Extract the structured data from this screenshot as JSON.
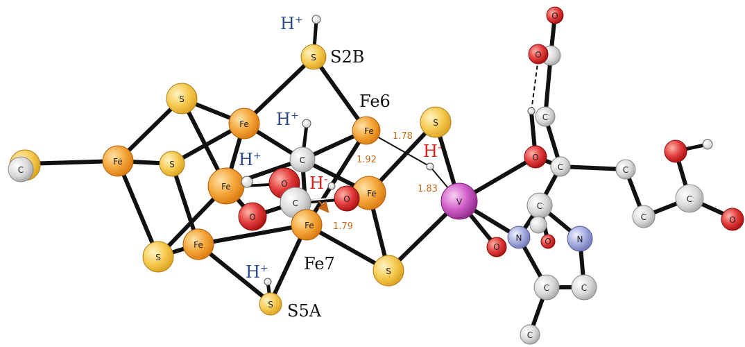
{
  "atom_symbols": {
    "fe": "Fe",
    "s": "S",
    "c": "C",
    "o": "O",
    "n": "N",
    "v": "V"
  },
  "labels": {
    "s2b": "S2B",
    "s5a": "S5A",
    "fe6": "Fe6",
    "fe7": "Fe7",
    "h_plus_s2b": "H",
    "h_plus_c": "H",
    "h_plus_fe": "H",
    "h_plus_s5a": "H",
    "h_minus_v": "H",
    "h_minus_center": "H",
    "plus_sign": "+",
    "minus_sign": "-"
  },
  "bond_lengths": {
    "fe6_h": "1.78",
    "c_h": "1.92",
    "v_h": "1.83",
    "fe7_h": "1.79"
  },
  "colors": {
    "iron": "#f2a030",
    "sulfur": "#f4c542",
    "carbon": "#d8d8d8",
    "oxygen": "#e23b3b",
    "nitrogen": "#9aa0d8",
    "vanadium": "#c85ac0",
    "h_plus_text": "#2b4a8a",
    "h_minus_text": "#e02020",
    "bond_length_text": "#c46a1a"
  }
}
